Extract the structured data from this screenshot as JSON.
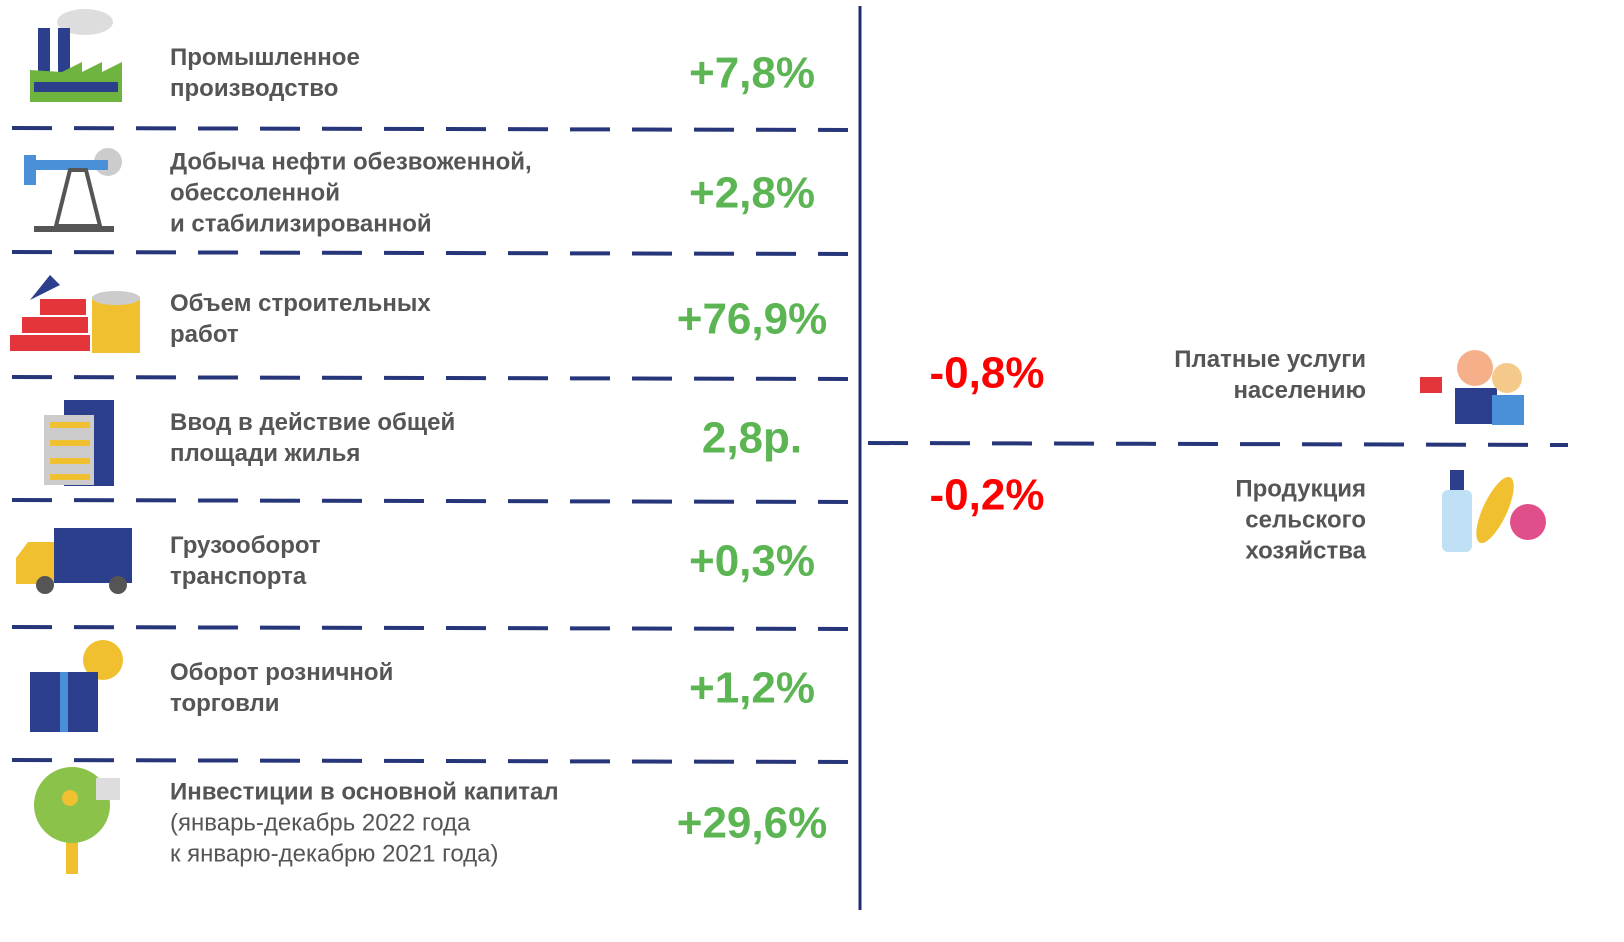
{
  "left_items": [
    {
      "lines": [
        "Промышленное",
        "производство"
      ],
      "value": "+7,8%"
    },
    {
      "lines": [
        "Добыча нефти обезвоженной,",
        "обессоленной",
        "и стабилизированной"
      ],
      "value": "+2,8%"
    },
    {
      "lines": [
        "Объем строительных",
        "работ"
      ],
      "value": "+76,9%"
    },
    {
      "lines": [
        "Ввод в действие общей",
        "площади жилья"
      ],
      "value": "2,8р."
    },
    {
      "lines": [
        "Грузооборот",
        "транспорта"
      ],
      "value": "+0,3%"
    },
    {
      "lines": [
        "Оборот розничной",
        "торговли"
      ],
      "value": "+1,2%"
    },
    {
      "lines": [
        "Инвестиции в основной капитал"
      ],
      "note_lines": [
        "(январь-декабрь 2022 года",
        "к январю-декабрю 2021 года)"
      ],
      "value": "+29,6%"
    }
  ],
  "right_items": [
    {
      "lines": [
        "Платные услуги",
        "населению"
      ],
      "value": "-0,8%"
    },
    {
      "lines": [
        "Продукция",
        "сельского",
        "хозяйства"
      ],
      "value": "-0,2%"
    }
  ]
}
